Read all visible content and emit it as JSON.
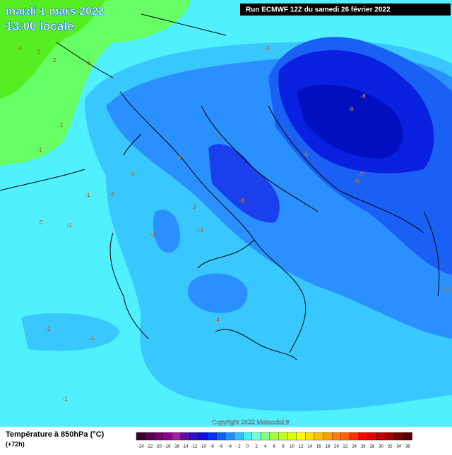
{
  "header": {
    "date": "mardi 1 mars 2022",
    "time": "13:00 locale",
    "run": "Run ECMWF 12Z du samedi 26 février 2022"
  },
  "copyright": "Copyright 2022 Meteociel.fr",
  "legend": {
    "title": "Température à 850hPa (°C)",
    "subtitle": "(+72h)",
    "ticks": [
      -24,
      -22,
      -20,
      -18,
      -16,
      -14,
      -12,
      -10,
      -8,
      -6,
      -4,
      -2,
      0,
      2,
      4,
      6,
      8,
      10,
      12,
      14,
      16,
      18,
      20,
      22,
      24,
      26,
      28,
      30,
      32,
      34,
      36
    ],
    "colors": [
      "#3a0030",
      "#5a0050",
      "#7a0070",
      "#900090",
      "#a020a0",
      "#6010a0",
      "#3010c0",
      "#1010e0",
      "#0030ff",
      "#1060ff",
      "#2090ff",
      "#30c0ff",
      "#40f0ff",
      "#70ffd0",
      "#80ff80",
      "#a0ff40",
      "#c0ff20",
      "#e0ff00",
      "#ffff00",
      "#ffe000",
      "#ffc000",
      "#ffa000",
      "#ff8000",
      "#ff6000",
      "#ff3000",
      "#ff0000",
      "#e00000",
      "#c00000",
      "#a00000",
      "#800000",
      "#500000"
    ]
  },
  "contour_labels": [
    -9,
    -8,
    -7,
    -6,
    -6,
    -5,
    -5,
    -4,
    -4,
    -4,
    -4,
    -3,
    -3,
    -3,
    -2,
    -2,
    -1,
    -1,
    -1,
    -1,
    -1,
    0,
    1,
    2,
    3,
    3,
    4
  ]
}
